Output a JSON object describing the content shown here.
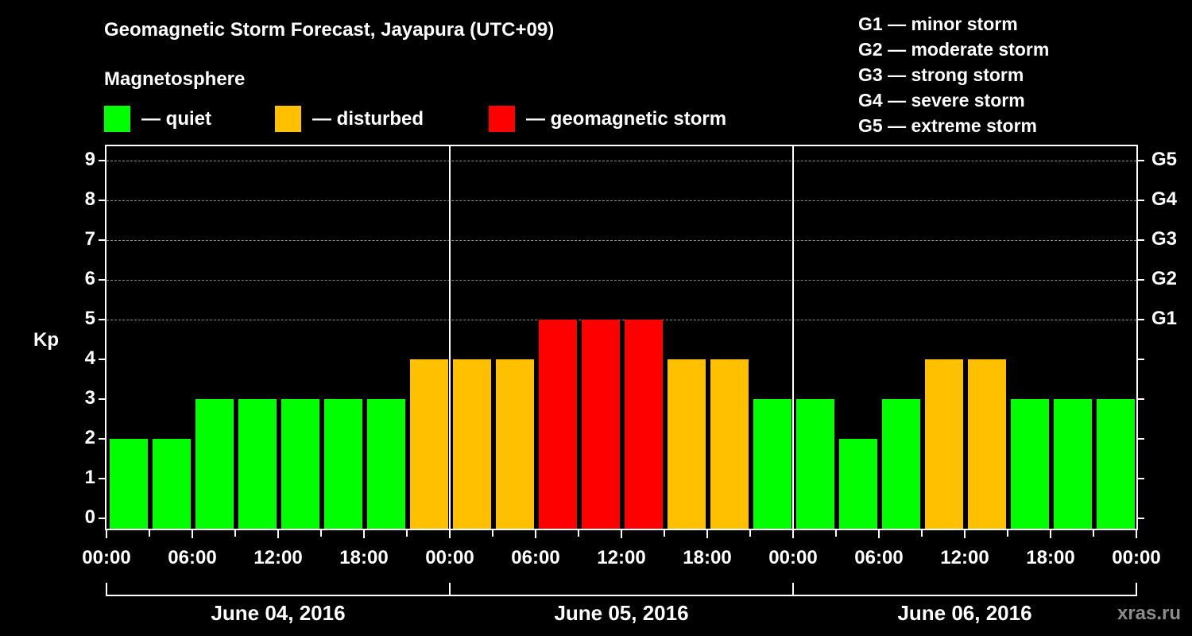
{
  "header": {
    "title": "Geomagnetic Storm Forecast, Jayapura (UTC+09)",
    "subtitle": "Magnetosphere"
  },
  "legend": [
    {
      "label": "— quiet",
      "color": "#00ff00"
    },
    {
      "label": "— disturbed",
      "color": "#ffc000"
    },
    {
      "label": "— geomagnetic storm",
      "color": "#ff0000"
    }
  ],
  "g_legend": [
    "G1 — minor storm",
    "G2 — moderate storm",
    "G3 — strong storm",
    "G4 — severe storm",
    "G5 — extreme storm"
  ],
  "axis": {
    "y_label": "Kp",
    "y_ticks": [
      "0",
      "1",
      "2",
      "3",
      "4",
      "5",
      "6",
      "7",
      "8",
      "9"
    ],
    "g_ticks": [
      {
        "kp": 5,
        "label": "G1"
      },
      {
        "kp": 6,
        "label": "G2"
      },
      {
        "kp": 7,
        "label": "G3"
      },
      {
        "kp": 8,
        "label": "G4"
      },
      {
        "kp": 9,
        "label": "G5"
      }
    ],
    "x_ticks": [
      "00:00",
      "06:00",
      "12:00",
      "18:00",
      "00:00",
      "06:00",
      "12:00",
      "18:00",
      "00:00",
      "06:00",
      "12:00",
      "18:00",
      "00:00"
    ],
    "days": [
      "June 04, 2016",
      "June 05, 2016",
      "June 06, 2016"
    ]
  },
  "watermark": "xras.ru",
  "chart_data": {
    "type": "bar",
    "title": "Geomagnetic Storm Forecast, Jayapura (UTC+09)",
    "xlabel": "",
    "ylabel": "Kp",
    "ylim": [
      0,
      9
    ],
    "grid": true,
    "legend_position": "top",
    "categories": [
      "June 04 00:00",
      "June 04 03:00",
      "June 04 06:00",
      "June 04 09:00",
      "June 04 12:00",
      "June 04 15:00",
      "June 04 18:00",
      "June 04 21:00",
      "June 05 00:00",
      "June 05 03:00",
      "June 05 06:00",
      "June 05 09:00",
      "June 05 12:00",
      "June 05 15:00",
      "June 05 18:00",
      "June 05 21:00",
      "June 06 00:00",
      "June 06 03:00",
      "June 06 06:00",
      "June 06 09:00",
      "June 06 12:00",
      "June 06 15:00",
      "June 06 18:00",
      "June 06 21:00"
    ],
    "values": [
      2,
      2,
      3,
      3,
      3,
      3,
      3,
      4,
      4,
      4,
      5,
      5,
      5,
      4,
      4,
      3,
      3,
      2,
      3,
      4,
      4,
      3,
      3,
      3
    ],
    "colors": {
      "quiet": "#00ff00",
      "disturbed": "#ffc000",
      "storm": "#ff0000"
    },
    "status": [
      "quiet",
      "quiet",
      "quiet",
      "quiet",
      "quiet",
      "quiet",
      "quiet",
      "disturbed",
      "disturbed",
      "disturbed",
      "storm",
      "storm",
      "storm",
      "disturbed",
      "disturbed",
      "quiet",
      "quiet",
      "quiet",
      "quiet",
      "disturbed",
      "disturbed",
      "quiet",
      "quiet",
      "quiet"
    ],
    "right_axis": {
      "G1": 5,
      "G2": 6,
      "G3": 7,
      "G4": 8,
      "G5": 9
    }
  }
}
